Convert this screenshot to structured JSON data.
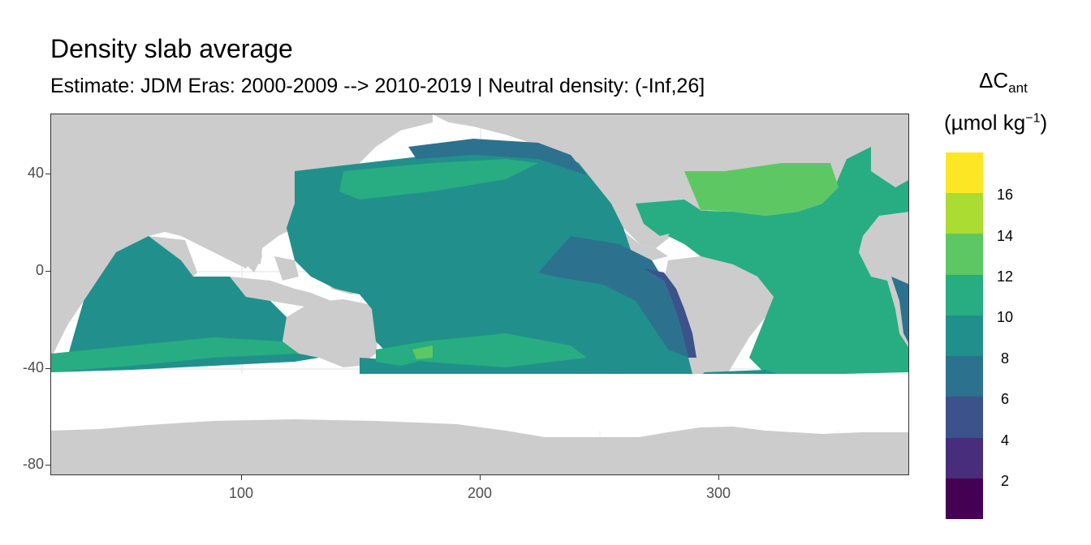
{
  "title": "Density slab average",
  "subtitle": "Estimate: JDM Eras: 2000-2009 --> 2010-2019 | Neutral density: (-Inf,26]",
  "axes": {
    "y_ticks": [
      "40",
      "0",
      "-40",
      "-80"
    ],
    "x_ticks": [
      "100",
      "200",
      "300"
    ],
    "xlim": [
      20,
      380
    ],
    "ylim": [
      -85,
      65
    ]
  },
  "legend": {
    "title_main": "ΔC",
    "title_sub": "ant",
    "units_main": "(µmol kg",
    "units_sup": "−1",
    "units_close": ")",
    "labels": [
      "16",
      "14",
      "12",
      "10",
      "8",
      "6",
      "4",
      "2"
    ],
    "colors": [
      "#FDE725",
      "#AADC32",
      "#5DC863",
      "#27AD81",
      "#21908C",
      "#2C728E",
      "#3B528B",
      "#472D7B",
      "#440154"
    ]
  },
  "map": {
    "land_color": "#cccccc",
    "grid_color": "#ebebeb",
    "background": "#ffffff"
  }
}
